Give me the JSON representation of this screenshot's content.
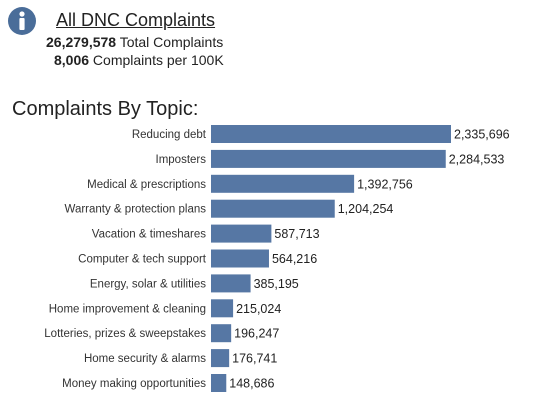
{
  "header": {
    "icon": "info-icon",
    "title": "All DNC Complaints",
    "total_value": "26,279,578",
    "total_label": " Total Complaints",
    "per_value": "8,006",
    "per_label": " Complaints per 100K"
  },
  "section_title": "Complaints By Topic:",
  "colors": {
    "bar": "#5677a4",
    "icon": "#4a6d99"
  },
  "chart_data": {
    "type": "bar",
    "orientation": "horizontal",
    "title": "Complaints By Topic:",
    "categories": [
      "Reducing debt",
      "Imposters",
      "Medical & prescriptions",
      "Warranty & protection plans",
      "Vacation & timeshares",
      "Computer & tech support",
      "Energy, solar & utilities",
      "Home improvement & cleaning",
      "Lotteries, prizes & sweepstakes",
      "Home security & alarms",
      "Money making opportunities"
    ],
    "values": [
      2335696,
      2284533,
      1392756,
      1204254,
      587713,
      564216,
      385195,
      215024,
      196247,
      176741,
      148686
    ],
    "value_labels": [
      "2,335,696",
      "2,284,533",
      "1,392,756",
      "1,204,254",
      "587,713",
      "564,216",
      "385,195",
      "215,024",
      "196,247",
      "176,741",
      "148,686"
    ]
  }
}
